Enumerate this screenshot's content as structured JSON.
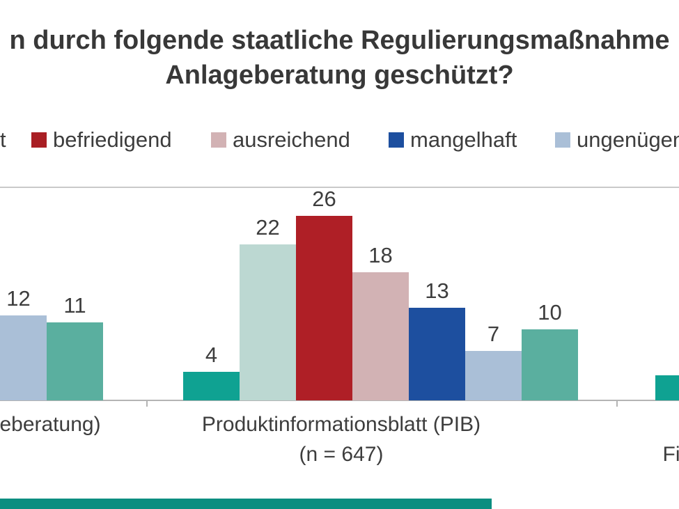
{
  "chart_data": {
    "type": "bar",
    "title_lines": [
      "n durch folgende staatliche Regulierungsmaßnahme",
      "Anlageberatung geschützt?"
    ],
    "legend": [
      {
        "label": "t",
        "color": null
      },
      {
        "label": "befriedigend",
        "color": "#a91f24"
      },
      {
        "label": "ausreichend",
        "color": "#d2b2b4"
      },
      {
        "label": "mangelhaft",
        "color": "#1d4f9f"
      },
      {
        "label": "ungenügend",
        "color": "#aabfd7"
      }
    ],
    "ylim": [
      0,
      30
    ],
    "gridline_values": [
      30
    ],
    "groups": [
      {
        "label_lines": [
          "eberatung)"
        ],
        "bars": [
          {
            "value": 12,
            "label": "12",
            "color": "#aabfd7"
          },
          {
            "value": 11,
            "label": "11",
            "color": "#5aaf9f"
          }
        ]
      },
      {
        "label_lines": [
          "Produktinformationsblatt (PIB)",
          "(n = 647)"
        ],
        "bars": [
          {
            "value": 4,
            "label": "4",
            "color": "#0fa292"
          },
          {
            "value": 22,
            "label": "22",
            "color": "#bcd8d2"
          },
          {
            "value": 26,
            "label": "26",
            "color": "#af1f26"
          },
          {
            "value": 18,
            "label": "18",
            "color": "#d2b2b4"
          },
          {
            "value": 13,
            "label": "13",
            "color": "#1d4f9f"
          },
          {
            "value": 7,
            "label": "7",
            "color": "#aabfd7"
          },
          {
            "value": 10,
            "label": "10",
            "color": "#5aaf9f"
          }
        ]
      },
      {
        "label_lines": [
          "",
          "Fi"
        ],
        "bars": [
          {
            "value": 3.5,
            "label": "",
            "color": "#0fa292"
          }
        ]
      }
    ]
  },
  "colors": {
    "grid": "#c9c9c9",
    "axis": "#b4b4b4",
    "text": "#3d3d3d",
    "accent_strip": "#0b8e80"
  }
}
